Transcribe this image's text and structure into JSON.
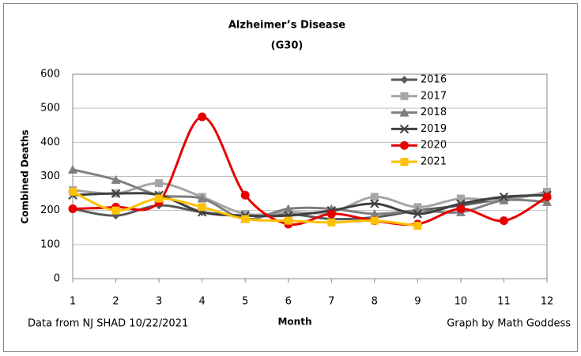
{
  "chart_data": {
    "type": "line",
    "title": "Alzheimer’s Disease",
    "subtitle": "(G30)",
    "y_label": "Combined Deaths",
    "x_label": "Month",
    "annotations": [
      "Data from NJ SHAD 10/22/2021",
      "Graph by Math Goddess"
    ],
    "x": [
      1,
      2,
      3,
      4,
      5,
      6,
      7,
      8,
      9,
      10,
      11,
      12
    ],
    "xlim": [
      1,
      12
    ],
    "xticks": [
      1,
      2,
      3,
      4,
      5,
      6,
      7,
      8,
      9,
      10,
      11,
      12
    ],
    "ylim": [
      0,
      600
    ],
    "yticks": [
      0,
      100,
      200,
      300,
      400,
      500,
      600
    ],
    "grid": true,
    "smooth": true,
    "legend": "top-right",
    "series": [
      {
        "name": "2016",
        "color": "#595959",
        "marker": "diamond",
        "values": [
          205,
          185,
          215,
          195,
          185,
          190,
          175,
          180,
          200,
          215,
          235,
          250
        ]
      },
      {
        "name": "2017",
        "color": "#a6a6a6",
        "marker": "square",
        "values": [
          260,
          250,
          280,
          240,
          190,
          195,
          195,
          240,
          210,
          235,
          230,
          255
        ]
      },
      {
        "name": "2018",
        "color": "#7f7f7f",
        "marker": "triangle",
        "values": [
          320,
          290,
          245,
          235,
          175,
          205,
          205,
          190,
          200,
          195,
          230,
          225
        ]
      },
      {
        "name": "2019",
        "color": "#404040",
        "marker": "x",
        "values": [
          245,
          250,
          245,
          195,
          185,
          185,
          200,
          220,
          190,
          220,
          240,
          245
        ]
      },
      {
        "name": "2020",
        "color": "#e60000",
        "marker": "circle",
        "values": [
          205,
          210,
          225,
          475,
          245,
          160,
          190,
          170,
          160,
          205,
          170,
          240
        ]
      },
      {
        "name": "2021",
        "color": "#ffc000",
        "marker": "square",
        "values": [
          255,
          200,
          235,
          210,
          175,
          170,
          165,
          170,
          155,
          null,
          null,
          null
        ]
      }
    ]
  }
}
